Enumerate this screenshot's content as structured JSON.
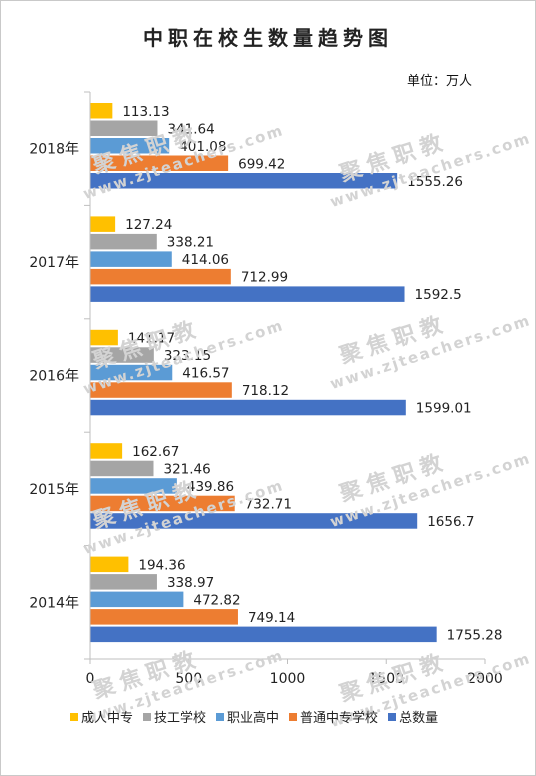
{
  "chart_data": {
    "type": "bar",
    "orientation": "horizontal",
    "title": "中职在校生数量趋势图",
    "unit": "单位：万人",
    "categories": [
      "2018年",
      "2017年",
      "2016年",
      "2015年",
      "2014年"
    ],
    "series": [
      {
        "name": "成人中专",
        "color": "#FFC000",
        "values": [
          113.13,
          127.24,
          141.17,
          162.67,
          194.36
        ],
        "labels": [
          "113.13",
          "127.24",
          "141.17",
          "162.67",
          "194.36"
        ]
      },
      {
        "name": "技工学校",
        "color": "#A5A5A5",
        "values": [
          341.64,
          338.21,
          323.15,
          321.46,
          338.97
        ],
        "labels": [
          "341.64",
          "338.21",
          "323.15",
          "321.46",
          "338.97"
        ]
      },
      {
        "name": "职业高中",
        "color": "#5B9BD5",
        "values": [
          401.08,
          414.06,
          416.57,
          439.86,
          472.82
        ],
        "labels": [
          "401.08",
          "414.06",
          "416.57",
          "439.86",
          "472.82"
        ]
      },
      {
        "name": "普通中专学校",
        "color": "#ED7D31",
        "values": [
          699.42,
          712.99,
          718.12,
          732.71,
          749.14
        ],
        "labels": [
          "699.42",
          "712.99",
          "718.12",
          "732.71",
          "749.14"
        ]
      },
      {
        "name": "总数量",
        "color": "#4472C4",
        "values": [
          1555.26,
          1592.5,
          1599.01,
          1656.7,
          1755.28
        ],
        "labels": [
          "1555.26",
          "1592.5",
          "1599.01",
          "1656.7",
          "1755.28"
        ]
      }
    ],
    "xlim": [
      0,
      2000
    ],
    "xticks": [
      0,
      500,
      1000,
      1500,
      2000
    ],
    "xtick_labels": [
      "0",
      "500",
      "1000",
      "1500",
      "2000"
    ],
    "grid": false,
    "legend": "bottom"
  },
  "watermark": {
    "cn": "聚焦职教",
    "en": "www.zjteachers.com"
  }
}
